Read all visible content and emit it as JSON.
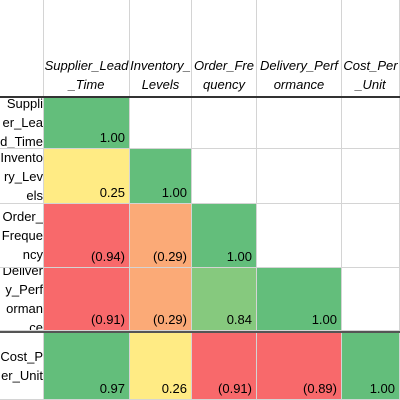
{
  "columns": [
    {
      "key": "supplier_lead_time",
      "label": "Supplier_Lead_Time"
    },
    {
      "key": "inventory_levels",
      "label": "Inventory_Levels"
    },
    {
      "key": "order_frequency",
      "label": "Order_Frequency"
    },
    {
      "key": "delivery_performance",
      "label": "Delivery_Performance"
    },
    {
      "key": "cost_per_unit",
      "label": "Cost_Per_Unit"
    }
  ],
  "rows": [
    {
      "label": "Supplier_Lead_Time",
      "cells": [
        {
          "text": "1.00",
          "color": "#63be7b"
        }
      ]
    },
    {
      "label": "Inventory_Levels",
      "cells": [
        {
          "text": "0.25",
          "color": "#ffeb84"
        },
        {
          "text": "1.00",
          "color": "#63be7b"
        }
      ]
    },
    {
      "label": "Order_Frequency",
      "cells": [
        {
          "text": "(0.94)",
          "color": "#f8696b"
        },
        {
          "text": "(0.29)",
          "color": "#fbaa77"
        },
        {
          "text": "1.00",
          "color": "#63be7b"
        }
      ]
    },
    {
      "label": "Delivery_Performance",
      "cells": [
        {
          "text": "(0.91)",
          "color": "#f8696b"
        },
        {
          "text": "(0.29)",
          "color": "#fbaa77"
        },
        {
          "text": "0.84",
          "color": "#86c97e"
        },
        {
          "text": "1.00",
          "color": "#63be7b"
        }
      ]
    },
    {
      "label": "Cost_Per_Unit",
      "cells": [
        {
          "text": "0.97",
          "color": "#63be7b"
        },
        {
          "text": "0.26",
          "color": "#ffeb84"
        },
        {
          "text": "(0.91)",
          "color": "#f8696b"
        },
        {
          "text": "(0.89)",
          "color": "#f8696b"
        },
        {
          "text": "1.00",
          "color": "#63be7b"
        }
      ]
    }
  ]
}
